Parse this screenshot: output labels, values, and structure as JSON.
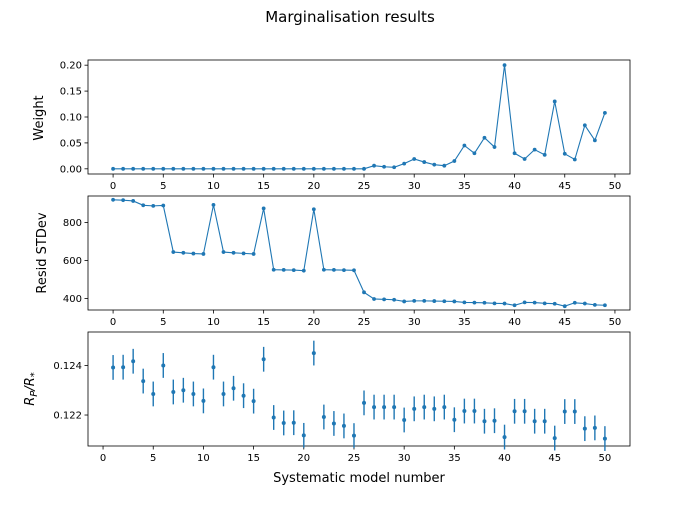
{
  "chart_data": [
    {
      "type": "line",
      "title": "Marginalisation results",
      "xlabel": "",
      "ylabel": "Weight",
      "xlim": [
        -2.5,
        51.5
      ],
      "ylim": [
        -0.01,
        0.21
      ],
      "xticks": [
        0,
        5,
        10,
        15,
        20,
        25,
        30,
        35,
        40,
        45,
        50
      ],
      "yticks": [
        0.0,
        0.05,
        0.1,
        0.15,
        0.2
      ],
      "ytick_labels": [
        "0.00",
        "0.05",
        "0.10",
        "0.15",
        "0.20"
      ],
      "color": "#1f77b4",
      "x": [
        0,
        1,
        2,
        3,
        4,
        5,
        6,
        7,
        8,
        9,
        10,
        11,
        12,
        13,
        14,
        15,
        16,
        17,
        18,
        19,
        20,
        21,
        22,
        23,
        24,
        25,
        26,
        27,
        28,
        29,
        30,
        31,
        32,
        33,
        34,
        35,
        36,
        37,
        38,
        39,
        40,
        41,
        42,
        43,
        44,
        45,
        46,
        47,
        48,
        49
      ],
      "y": [
        0,
        0,
        0,
        0,
        0,
        0,
        0,
        0,
        0,
        0,
        0,
        0,
        0,
        0,
        0,
        0,
        0,
        0,
        0,
        0,
        0,
        0,
        0,
        0,
        0,
        0,
        0.006,
        0.004,
        0.003,
        0.01,
        0.019,
        0.013,
        0.008,
        0.006,
        0.015,
        0.045,
        0.03,
        0.06,
        0.042,
        0.2,
        0.03,
        0.019,
        0.037,
        0.027,
        0.13,
        0.029,
        0.018,
        0.084,
        0.055,
        0.108
      ]
    },
    {
      "type": "line",
      "xlabel": "",
      "ylabel": "Resid STDev",
      "xlim": [
        -2.5,
        51.5
      ],
      "ylim": [
        340,
        940
      ],
      "xticks": [
        0,
        5,
        10,
        15,
        20,
        25,
        30,
        35,
        40,
        45,
        50
      ],
      "yticks": [
        400,
        600,
        800
      ],
      "ytick_labels": [
        "400",
        "600",
        "800"
      ],
      "color": "#1f77b4",
      "x": [
        0,
        1,
        2,
        3,
        4,
        5,
        6,
        7,
        8,
        9,
        10,
        11,
        12,
        13,
        14,
        15,
        16,
        17,
        18,
        19,
        20,
        21,
        22,
        23,
        24,
        25,
        26,
        27,
        28,
        29,
        30,
        31,
        32,
        33,
        34,
        35,
        36,
        37,
        38,
        39,
        40,
        41,
        42,
        43,
        44,
        45,
        46,
        47,
        48,
        49
      ],
      "y": [
        920,
        918,
        914,
        891,
        888,
        890,
        645,
        641,
        637,
        635,
        893,
        645,
        641,
        638,
        635,
        875,
        552,
        551,
        550,
        547,
        870,
        552,
        551,
        550,
        549,
        433,
        398,
        396,
        394,
        385,
        388,
        388,
        387,
        386,
        385,
        380,
        379,
        378,
        375,
        374,
        365,
        380,
        379,
        375,
        373,
        360,
        378,
        374,
        367,
        365
      ]
    },
    {
      "type": "scatter",
      "xlabel": "Systematic model number",
      "ylabel": "R_P/R_*",
      "xlim": [
        -1.5,
        52.5
      ],
      "ylim": [
        0.12075,
        0.12535
      ],
      "xticks": [
        0,
        5,
        10,
        15,
        20,
        25,
        30,
        35,
        40,
        45,
        50
      ],
      "yticks": [
        0.122,
        0.124
      ],
      "ytick_labels": [
        "0.122",
        "0.124"
      ],
      "color": "#1f77b4",
      "x": [
        1,
        2,
        3,
        4,
        5,
        6,
        7,
        8,
        9,
        10,
        11,
        12,
        13,
        14,
        15,
        16,
        17,
        18,
        19,
        20,
        21,
        22,
        23,
        24,
        25,
        26,
        27,
        28,
        29,
        30,
        31,
        32,
        33,
        34,
        35,
        36,
        37,
        38,
        39,
        40,
        41,
        42,
        43,
        44,
        45,
        46,
        47,
        48,
        49,
        50
      ],
      "y": [
        0.12392,
        0.12393,
        0.12417,
        0.12337,
        0.12285,
        0.124,
        0.12293,
        0.123,
        0.12285,
        0.12257,
        0.12393,
        0.12285,
        0.12308,
        0.12278,
        0.12256,
        0.12425,
        0.1219,
        0.12168,
        0.12169,
        0.12118,
        0.1245,
        0.12192,
        0.12166,
        0.12156,
        0.12117,
        0.12249,
        0.12232,
        0.12232,
        0.12232,
        0.1218,
        0.12225,
        0.12232,
        0.12225,
        0.12232,
        0.12181,
        0.12216,
        0.12216,
        0.12175,
        0.12177,
        0.12111,
        0.12215,
        0.12215,
        0.12175,
        0.12175,
        0.12107,
        0.12214,
        0.12214,
        0.12145,
        0.12148,
        0.12105
      ],
      "yerr": [
        0.0005,
        0.0005,
        0.0005,
        0.0005,
        0.0005,
        0.0005,
        0.0005,
        0.0005,
        0.0005,
        0.0005,
        0.0005,
        0.0005,
        0.0005,
        0.0005,
        0.0005,
        0.0005,
        0.0005,
        0.0005,
        0.0005,
        0.0005,
        0.0005,
        0.0005,
        0.0005,
        0.0005,
        0.0005,
        0.0005,
        0.0005,
        0.0005,
        0.0005,
        0.0005,
        0.0005,
        0.0005,
        0.0005,
        0.0005,
        0.0005,
        0.0005,
        0.0005,
        0.0005,
        0.0005,
        0.0005,
        0.0005,
        0.0005,
        0.0005,
        0.0005,
        0.0005,
        0.0005,
        0.0005,
        0.0005,
        0.0005,
        0.0005
      ]
    }
  ]
}
